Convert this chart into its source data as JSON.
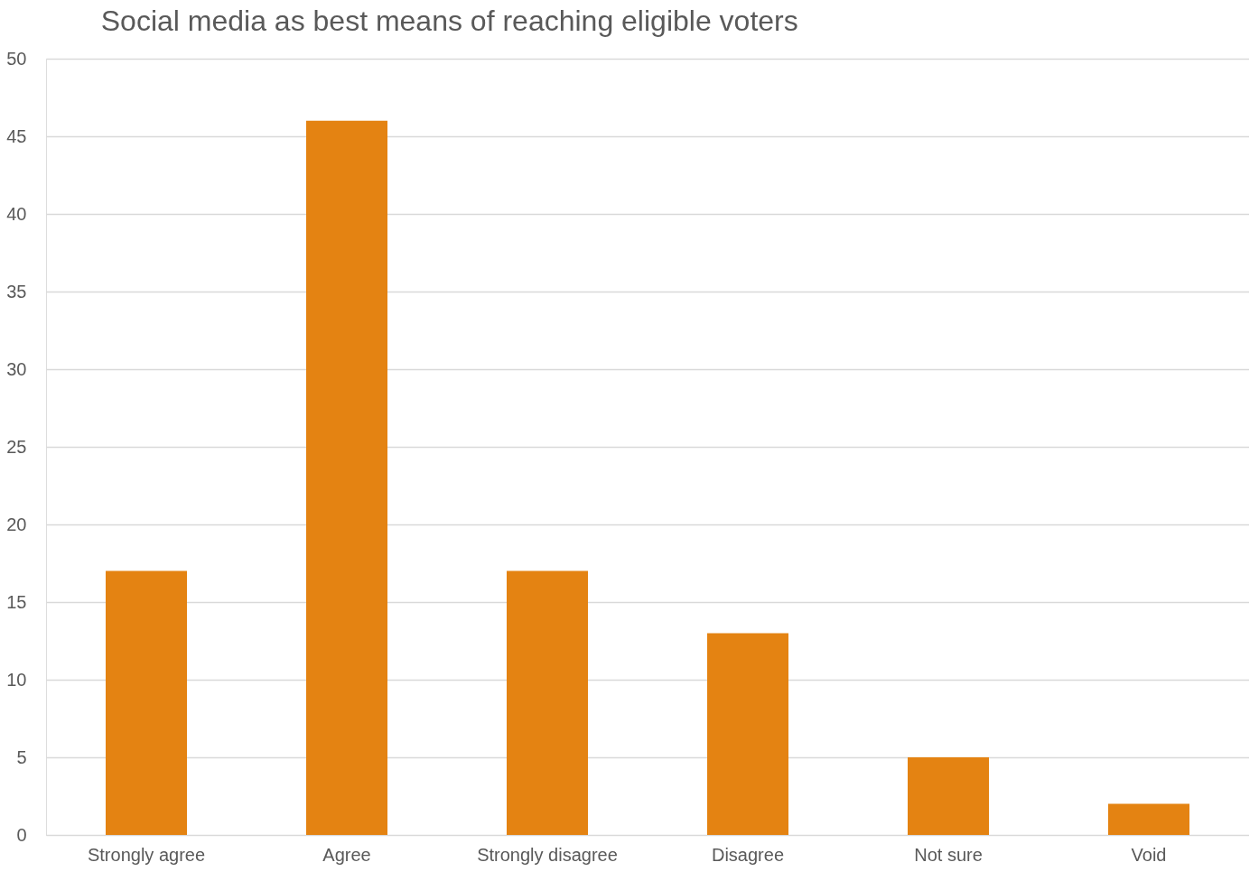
{
  "chart_data": {
    "type": "bar",
    "title": "Social media as best means of reaching eligible voters",
    "categories": [
      "Strongly agree",
      "Agree",
      "Strongly disagree",
      "Disagree",
      "Not sure",
      "Void"
    ],
    "values": [
      17,
      46,
      17,
      13,
      5,
      2
    ],
    "color": "#e48312",
    "ylim": [
      0,
      50
    ],
    "yticks": [
      0,
      5,
      10,
      15,
      20,
      25,
      30,
      35,
      40,
      45,
      50
    ],
    "grid": "y"
  }
}
